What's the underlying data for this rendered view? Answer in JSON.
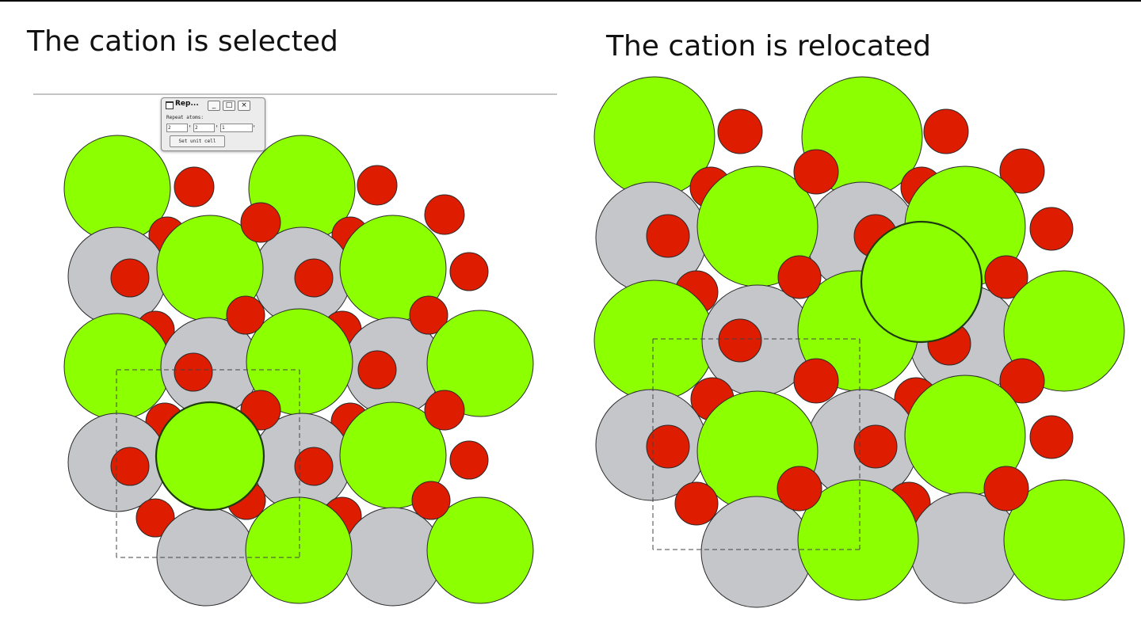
{
  "captions": {
    "left": "The cation is selected",
    "right": "The cation is relocated"
  },
  "colors": {
    "cation": "#8cff00",
    "anion": "#dd1c00",
    "gray_ion": "#c4c6ca",
    "outline": "#2a2a2a",
    "selected_outline": "#1e3a10",
    "cell_border": "#444444"
  },
  "dialog": {
    "title": "Rep...",
    "min_icon": "minimize-icon",
    "max_icon": "maximize-icon",
    "close_icon": "close-icon",
    "label": "Repeat atoms:",
    "repeat_a": "2",
    "repeat_b": "2",
    "repeat_c": "1",
    "set_unit_cell_label": "Set unit cell"
  }
}
